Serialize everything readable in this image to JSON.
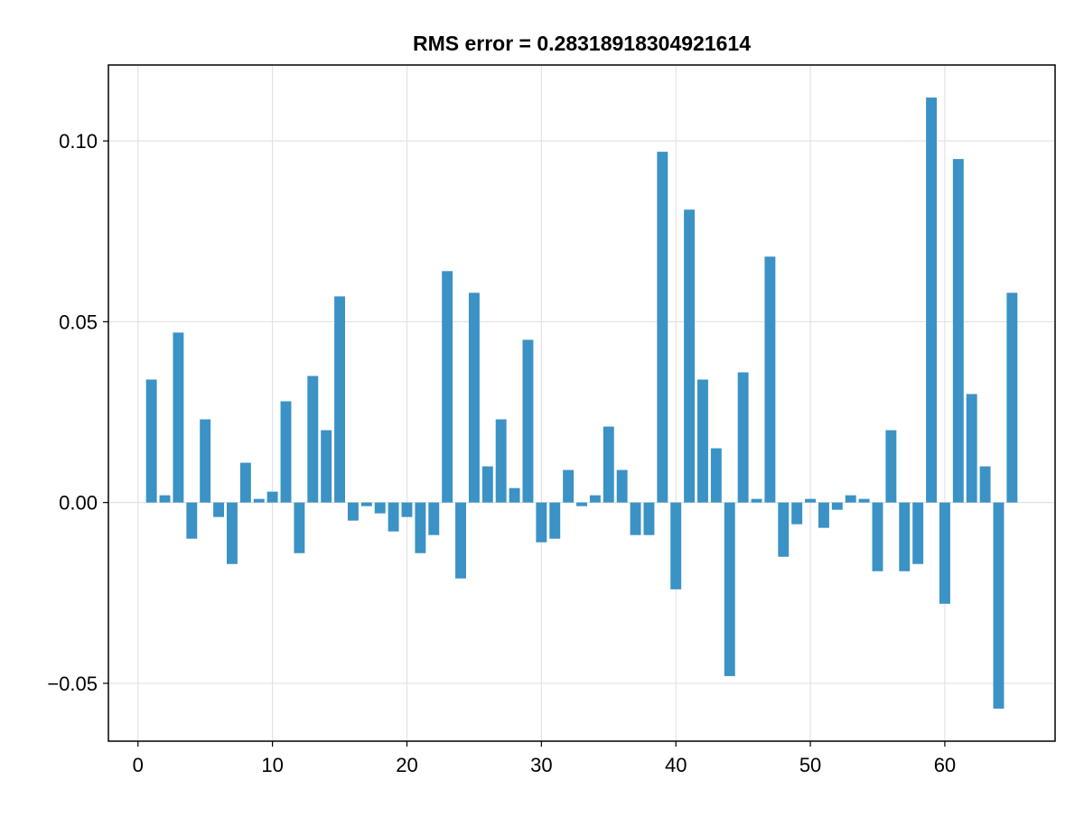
{
  "chart_data": {
    "type": "bar",
    "title": "RMS error = 0.28318918304921614",
    "xlabel": "",
    "ylabel": "",
    "xlim": [
      -2.2,
      68.2
    ],
    "ylim": [
      -0.066,
      0.121
    ],
    "x_ticks": [
      0,
      10,
      20,
      30,
      40,
      50,
      60
    ],
    "x_tick_labels": [
      "0",
      "10",
      "20",
      "30",
      "40",
      "50",
      "60"
    ],
    "y_ticks": [
      -0.05,
      0.0,
      0.05,
      0.1
    ],
    "y_tick_labels": [
      "−0.05",
      "0.00",
      "0.05",
      "0.10"
    ],
    "grid": true,
    "bar_width": 0.8,
    "colors": {
      "bar": "#3a92c5",
      "grid": "#e3e3e3",
      "frame": "#000000",
      "background": "#ffffff"
    },
    "x": [
      1,
      2,
      3,
      4,
      5,
      6,
      7,
      8,
      9,
      10,
      11,
      12,
      13,
      14,
      15,
      16,
      17,
      18,
      19,
      20,
      21,
      22,
      23,
      24,
      25,
      26,
      27,
      28,
      29,
      30,
      31,
      32,
      33,
      34,
      35,
      36,
      37,
      38,
      39,
      40,
      41,
      42,
      43,
      44,
      45,
      46,
      47,
      48,
      49,
      50,
      51,
      52,
      53,
      54,
      55,
      56,
      57,
      58,
      59,
      60,
      61,
      62,
      63,
      64,
      65
    ],
    "values": [
      0.034,
      0.002,
      0.047,
      -0.01,
      0.023,
      -0.004,
      -0.017,
      0.011,
      0.001,
      0.003,
      0.028,
      -0.014,
      0.035,
      0.02,
      0.057,
      -0.005,
      -0.001,
      -0.003,
      -0.008,
      -0.004,
      -0.014,
      -0.009,
      0.064,
      -0.021,
      0.058,
      0.01,
      0.023,
      0.004,
      0.045,
      -0.011,
      -0.01,
      0.009,
      -0.001,
      0.002,
      0.021,
      0.009,
      -0.009,
      -0.009,
      0.097,
      -0.024,
      0.081,
      0.034,
      0.015,
      -0.048,
      0.036,
      0.001,
      0.068,
      -0.015,
      -0.006,
      0.001,
      -0.007,
      -0.002,
      0.002,
      0.001,
      -0.019,
      0.02,
      -0.019,
      -0.017,
      0.112,
      -0.028,
      0.095,
      0.03,
      0.01,
      -0.057,
      0.058
    ]
  }
}
